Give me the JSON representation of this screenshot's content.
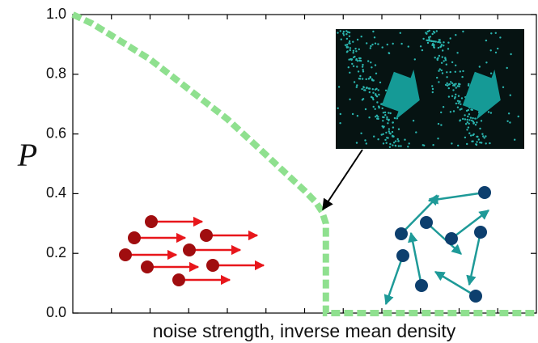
{
  "chart_data": {
    "type": "line",
    "ylabel": "P",
    "xlabel": "noise strength, inverse mean density",
    "x": [
      0,
      0.5,
      1,
      1.5,
      2,
      2.5,
      3,
      3.5,
      4,
      4.5,
      5,
      5.5,
      6,
      6.3,
      6.45,
      6.55,
      6.55,
      12
    ],
    "series": [
      {
        "color": "#8fe08f",
        "values": [
          1.0,
          0.97,
          0.93,
          0.89,
          0.85,
          0.8,
          0.75,
          0.7,
          0.65,
          0.59,
          0.53,
          0.47,
          0.41,
          0.37,
          0.34,
          0.3,
          0.0,
          0.0
        ]
      }
    ],
    "xlim": [
      0,
      12
    ],
    "xticks": [
      1,
      2,
      3,
      4,
      5,
      6,
      7,
      8,
      9,
      10,
      11
    ],
    "ylim": [
      0,
      1
    ],
    "yticks": [
      {
        "value": 0,
        "label": "0.0"
      },
      0.2,
      0.4,
      0.6,
      0.8,
      {
        "value": 1,
        "label": "1.0"
      }
    ]
  }
}
